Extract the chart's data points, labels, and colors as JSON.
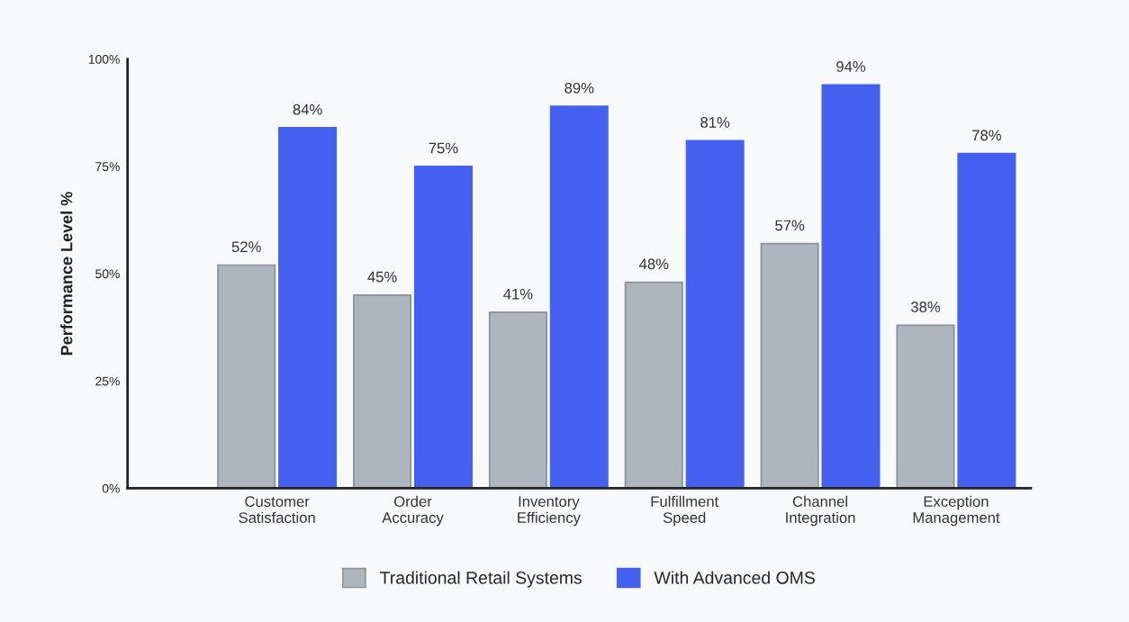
{
  "chart_data": {
    "type": "bar",
    "categories": [
      "Customer\nSatisfaction",
      "Order\nAccuracy",
      "Inventory\nEfficiency",
      "Fulfillment\nSpeed",
      "Channel\nIntegration",
      "Exception\nManagement"
    ],
    "series": [
      {
        "name": "Traditional Retail Systems",
        "color": "#adb5bd",
        "values": [
          52,
          45,
          41,
          48,
          57,
          38
        ],
        "value_labels": [
          "52%",
          "45%",
          "41%",
          "48%",
          "57%",
          "38%"
        ]
      },
      {
        "name": "With Advanced OMS",
        "color": "#4361ee",
        "values": [
          84,
          75,
          89,
          81,
          94,
          78
        ],
        "value_labels": [
          "84%",
          "75%",
          "89%",
          "81%",
          "94%",
          "78%"
        ]
      }
    ],
    "ylabel": "Performance Level %",
    "ylim": [
      0,
      100
    ],
    "yticks": [
      {
        "value": 0,
        "label": "0%"
      },
      {
        "value": 25,
        "label": "25%"
      },
      {
        "value": 50,
        "label": "50%"
      },
      {
        "value": 75,
        "label": "75%"
      },
      {
        "value": 100,
        "label": "100%"
      }
    ],
    "grid": false,
    "legend": "bottom"
  }
}
